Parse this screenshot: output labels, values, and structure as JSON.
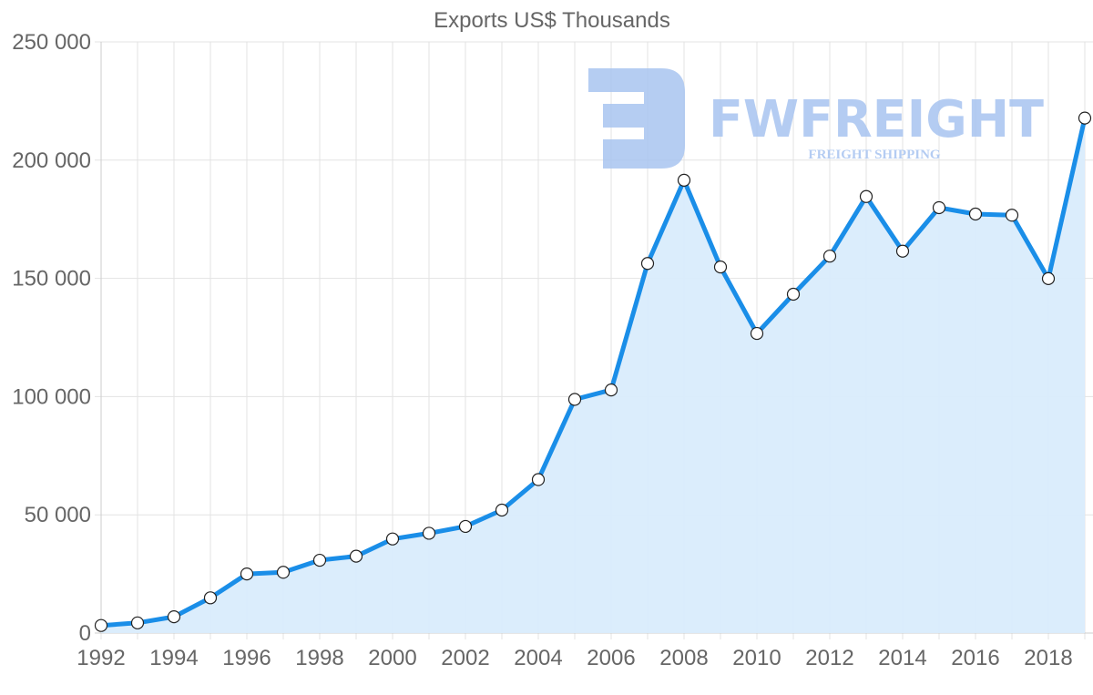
{
  "chart_data": {
    "type": "area",
    "title": "Exports US$ Thousands",
    "xlabel": "",
    "ylabel": "",
    "x": [
      1992,
      1993,
      1994,
      1995,
      1996,
      1997,
      1998,
      1999,
      2000,
      2001,
      2002,
      2003,
      2004,
      2005,
      2006,
      2007,
      2008,
      2009,
      2010,
      2011,
      2012,
      2013,
      2014,
      2015,
      2016,
      2017,
      2018,
      2019
    ],
    "series": [
      {
        "name": "Exports US$ Thousands",
        "values": [
          3200,
          4300,
          6900,
          14900,
          25000,
          25700,
          30800,
          32500,
          39800,
          42200,
          45100,
          52000,
          64900,
          98800,
          102800,
          156300,
          191500,
          154800,
          126700,
          143300,
          159400,
          184600,
          161500,
          179900,
          177200,
          176700,
          149900,
          217800
        ]
      }
    ],
    "xticks": [
      "1992",
      "1994",
      "1996",
      "1998",
      "2000",
      "2002",
      "2004",
      "2006",
      "2008",
      "2010",
      "2012",
      "2014",
      "2016",
      "2018"
    ],
    "yticks": [
      "0",
      "50 000",
      "100 000",
      "150 000",
      "200 000",
      "250 000"
    ],
    "ylim": [
      0,
      250000
    ],
    "grid": true,
    "legend": null,
    "colors": {
      "line": "#1a8ee8",
      "fill": "#d9ecfc",
      "point_fill": "#ffffff",
      "point_stroke": "#222222",
      "grid": "#e3e3e3",
      "text": "#666666"
    }
  },
  "watermark": {
    "brand": "FWFREIGHT",
    "tagline": "FREIGHT SHIPPING",
    "color": "#a8c4f0"
  }
}
